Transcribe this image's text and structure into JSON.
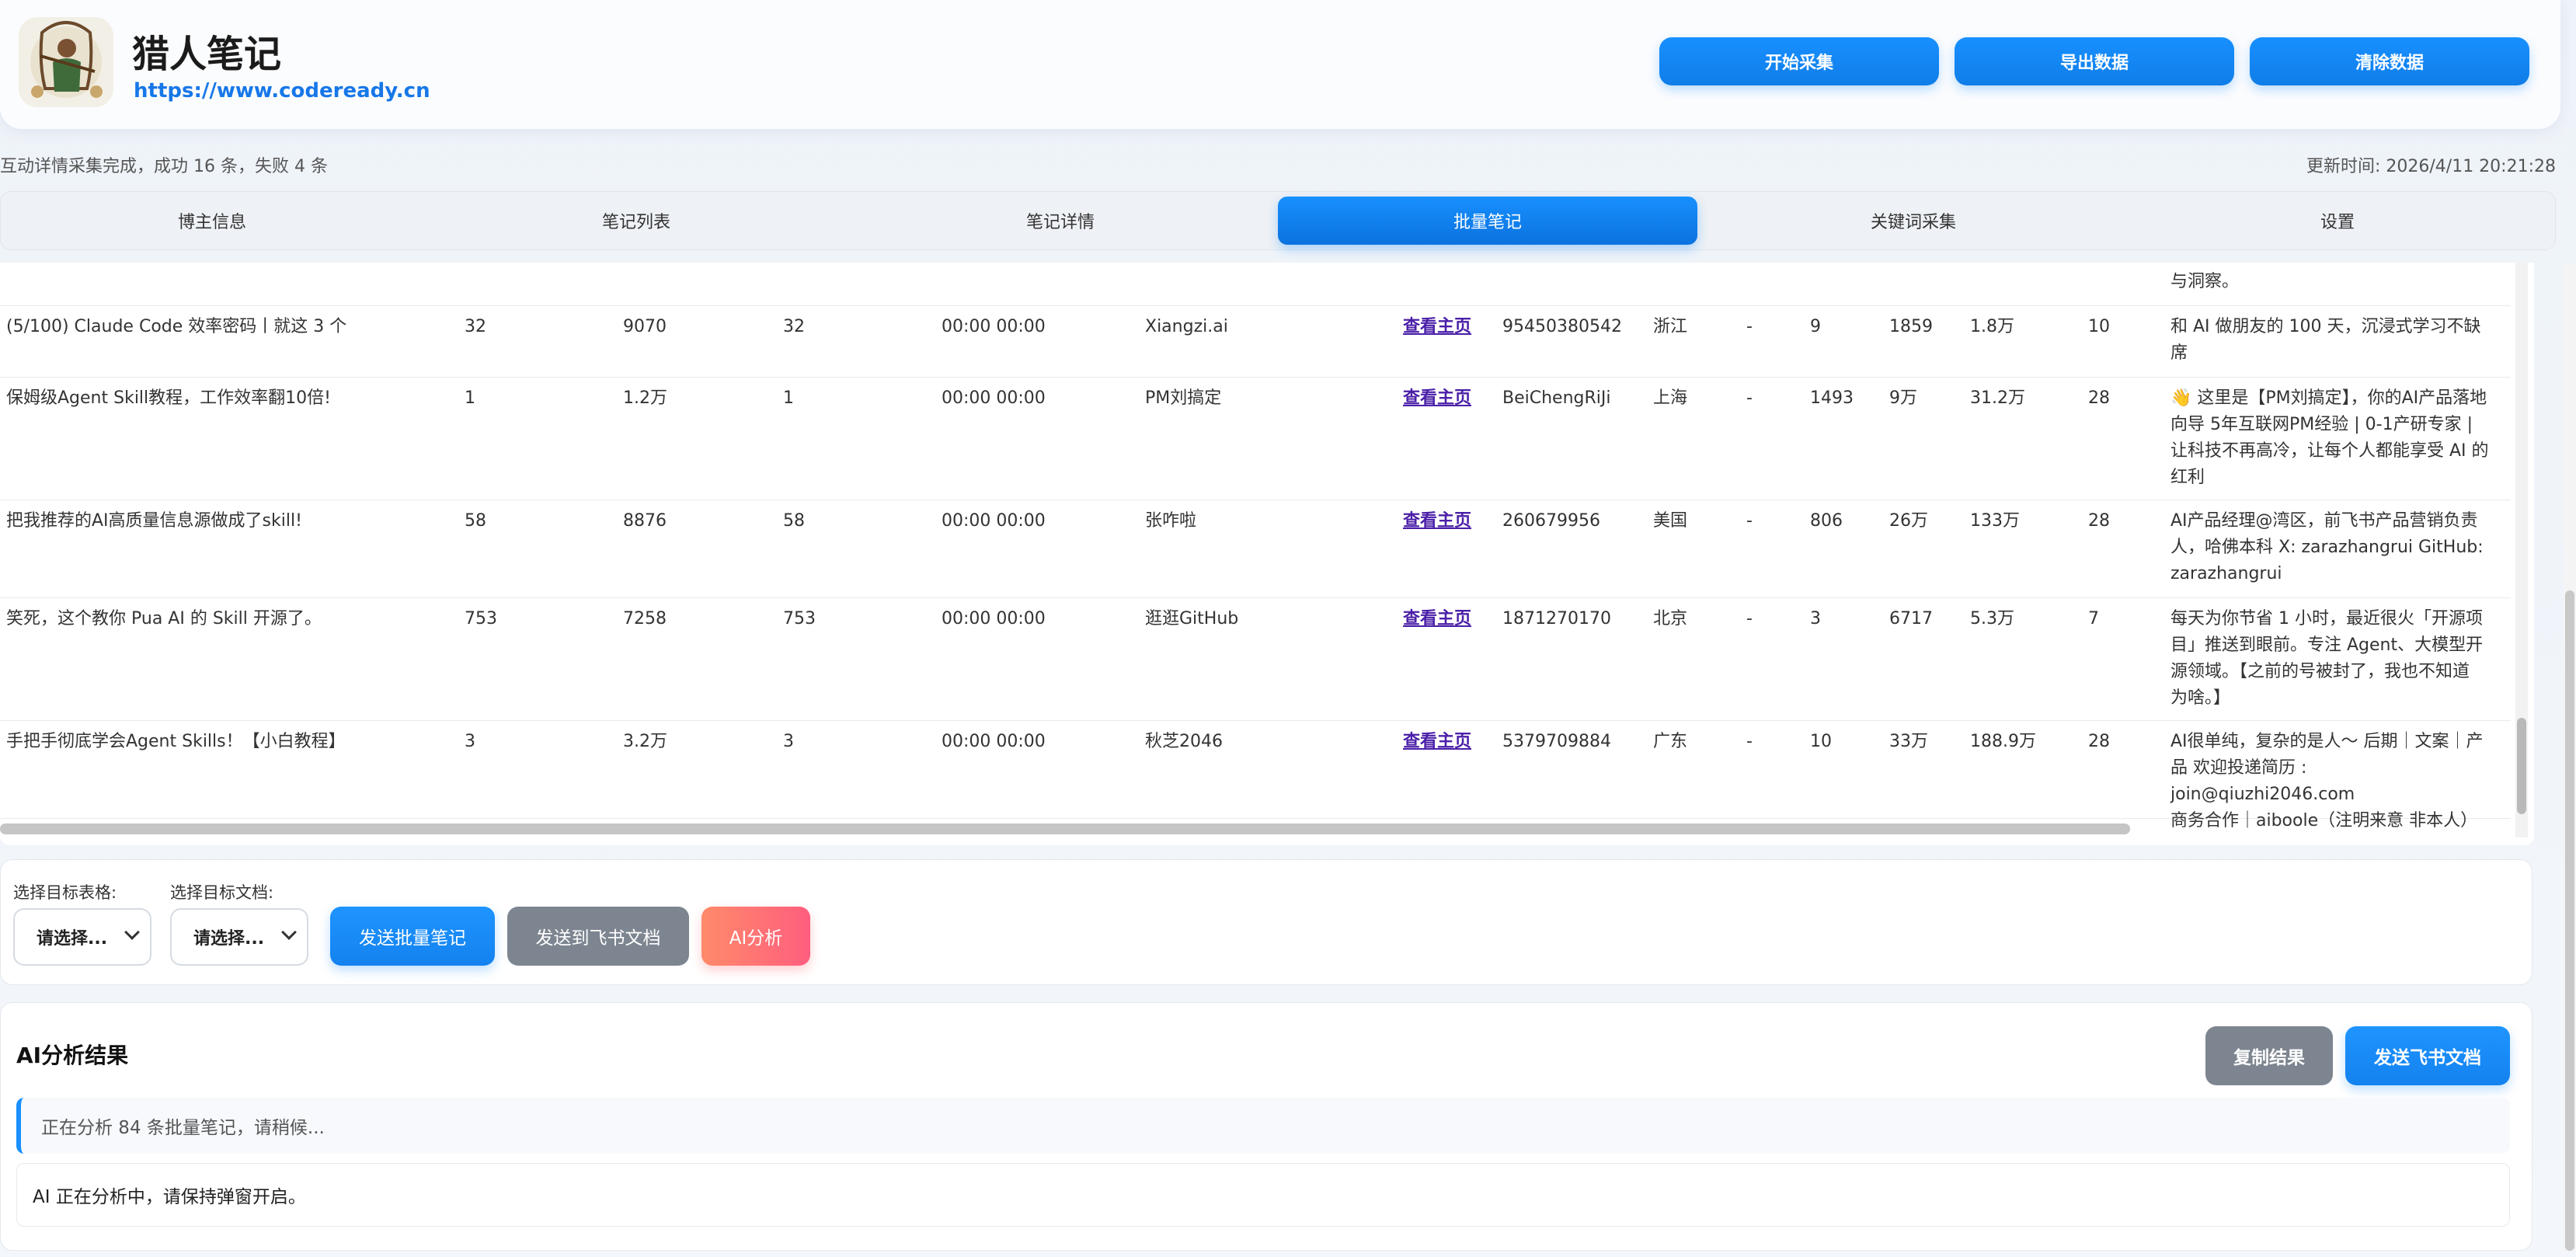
{
  "header": {
    "title": "猎人笔记",
    "url": "https://www.codeready.cn",
    "buttons": {
      "start": "开始采集",
      "export": "导出数据",
      "clear": "清除数据"
    }
  },
  "status": {
    "message": "互动详情采集完成，成功 16 条，失败 4 条",
    "updated": "更新时间: 2026/4/11 20:21:28"
  },
  "tabs": [
    {
      "label": "博主信息",
      "active": false
    },
    {
      "label": "笔记列表",
      "active": false
    },
    {
      "label": "笔记详情",
      "active": false
    },
    {
      "label": "批量笔记",
      "active": true
    },
    {
      "label": "关键词采集",
      "active": false
    },
    {
      "label": "设置",
      "active": false
    }
  ],
  "table": {
    "partial_row_desc": "与洞察。",
    "rows": [
      {
        "title": "(5/100) Claude Code 效率密码丨就这 3 个",
        "c1": "32",
        "c2": "9070",
        "c3": "32",
        "time": "00:00 00:00",
        "author": "Xiangzi.ai",
        "link": "查看主页",
        "uid": "95450380542",
        "region": "浙江",
        "dash": "-",
        "n1": "9",
        "n2": "1859",
        "n3": "1.8万",
        "n4": "10",
        "desc": [
          "和 AI 做朋友的 100 天，沉浸式学习不缺",
          "席"
        ]
      },
      {
        "title": "保姆级Agent Skill教程，工作效率翻10倍!",
        "c1": "1",
        "c2": "1.2万",
        "c3": "1",
        "time": "00:00 00:00",
        "author": "PM刘搞定",
        "link": "查看主页",
        "uid": "BeiChengRiJi",
        "region": "上海",
        "dash": "-",
        "n1": "1493",
        "n2": "9万",
        "n3": "31.2万",
        "n4": "28",
        "desc": [
          "👋 这里是【PM刘搞定】，你的AI产品落地",
          "向导 5年互联网PM经验 | 0-1产研专家 |",
          "让科技不再高冷，让每个人都能享受 AI 的",
          "红利"
        ]
      },
      {
        "title": "把我推荐的AI高质量信息源做成了skill!",
        "c1": "58",
        "c2": "8876",
        "c3": "58",
        "time": "00:00 00:00",
        "author": "张咋啦",
        "link": "查看主页",
        "uid": "260679956",
        "region": "美国",
        "dash": "-",
        "n1": "806",
        "n2": "26万",
        "n3": "133万",
        "n4": "28",
        "desc": [
          "AI产品经理@湾区，前飞书产品营销负责",
          "人，哈佛本科 X: zarazhangrui GitHub:",
          "zarazhangrui"
        ]
      },
      {
        "title": "笑死，这个教你 Pua AI 的 Skill 开源了。",
        "c1": "753",
        "c2": "7258",
        "c3": "753",
        "time": "00:00 00:00",
        "author": "逛逛GitHub",
        "link": "查看主页",
        "uid": "1871270170",
        "region": "北京",
        "dash": "-",
        "n1": "3",
        "n2": "6717",
        "n3": "5.3万",
        "n4": "7",
        "desc": [
          "每天为你节省 1 小时，最近很火「开源项",
          "目」推送到眼前。专注 Agent、大模型开",
          "源领域。【之前的号被封了，我也不知道",
          "为啥。】"
        ]
      },
      {
        "title": "手把手彻底学会Agent Skills！【小白教程】",
        "c1": "3",
        "c2": "3.2万",
        "c3": "3",
        "time": "00:00 00:00",
        "author": "秋芝2046",
        "link": "查看主页",
        "uid": "5379709884",
        "region": "广东",
        "dash": "-",
        "n1": "10",
        "n2": "33万",
        "n3": "188.9万",
        "n4": "28",
        "desc": [
          "AI很单纯，复杂的是人～ 后期｜文案｜产",
          "品 欢迎投递简历 : join@qiuzhi2046.com",
          "商务合作｜aiboole（注明来意 非本人）"
        ]
      }
    ]
  },
  "actions": {
    "table_label": "选择目标表格:",
    "doc_label": "选择目标文档:",
    "table_select": "请选择...",
    "doc_select": "请选择...",
    "send_batch": "发送批量笔记",
    "send_feishu": "发送到飞书文档",
    "ai_analyze": "AI分析"
  },
  "ai_result": {
    "title": "AI分析结果",
    "copy": "复制结果",
    "send": "发送飞书文档",
    "note": "正在分析 84 条批量笔记，请稍候...",
    "content": "AI 正在分析中，请保持弹窗开启。"
  },
  "colors": {
    "primary": "#1890ff",
    "gray_button": "#7d8590",
    "ai_gradient_start": "#ff8a6a",
    "ai_gradient_end": "#ff5e7e",
    "link": "#4a1fa8"
  }
}
